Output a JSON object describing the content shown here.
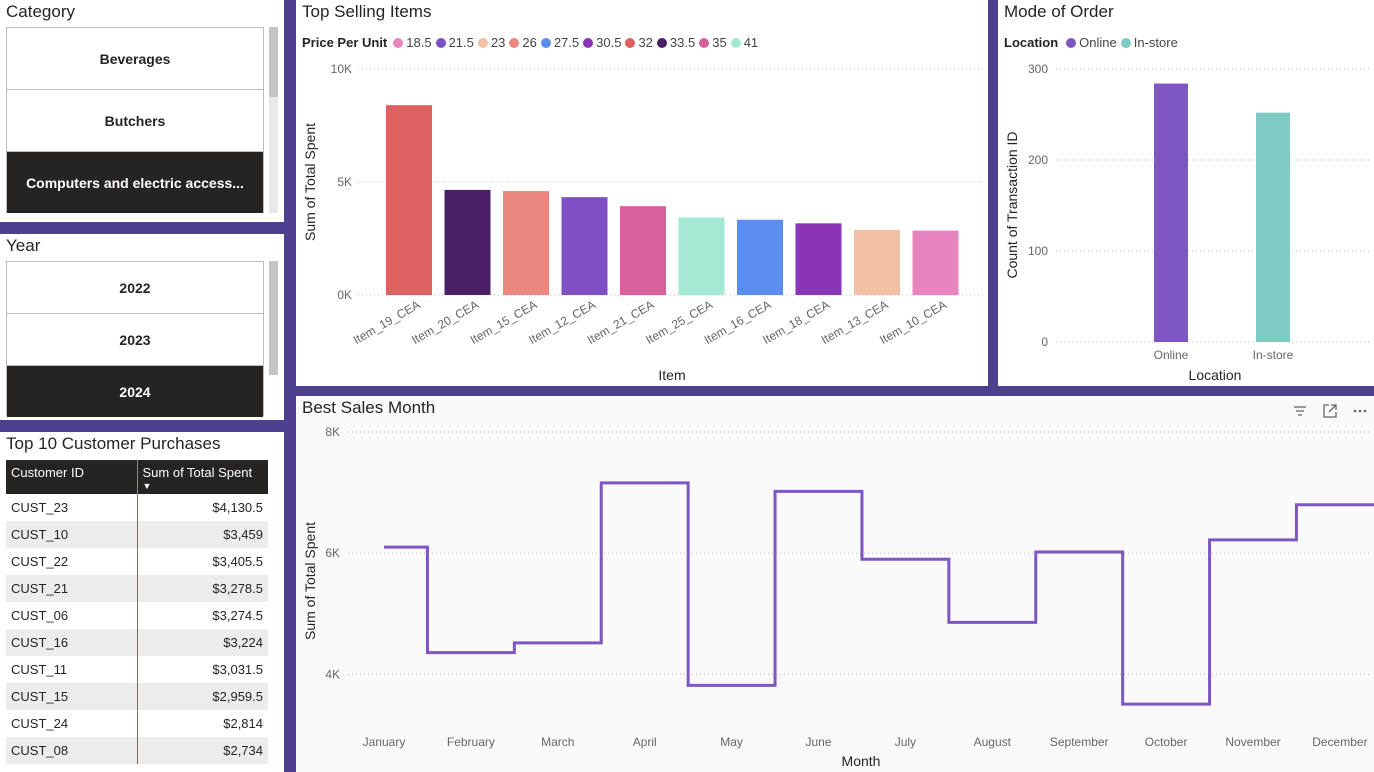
{
  "category_slicer": {
    "title": "Category",
    "items": [
      {
        "label": "Beverages",
        "selected": false
      },
      {
        "label": "Butchers",
        "selected": false
      },
      {
        "label": "Computers and electric access...",
        "selected": true
      }
    ]
  },
  "year_slicer": {
    "title": "Year",
    "items": [
      {
        "label": "2022",
        "selected": false
      },
      {
        "label": "2023",
        "selected": false
      },
      {
        "label": "2024",
        "selected": true
      }
    ]
  },
  "customer_table": {
    "title": "Top 10 Customer Purchases",
    "headers": [
      "Customer ID",
      "Sum of Total Spent"
    ],
    "sort_indicator": "▼",
    "rows": [
      [
        "CUST_23",
        "$4,130.5"
      ],
      [
        "CUST_10",
        "$3,459"
      ],
      [
        "CUST_22",
        "$3,405.5"
      ],
      [
        "CUST_21",
        "$3,278.5"
      ],
      [
        "CUST_06",
        "$3,274.5"
      ],
      [
        "CUST_16",
        "$3,224"
      ],
      [
        "CUST_11",
        "$3,031.5"
      ],
      [
        "CUST_15",
        "$2,959.5"
      ],
      [
        "CUST_24",
        "$2,814"
      ],
      [
        "CUST_08",
        "$2,734"
      ]
    ]
  },
  "top_selling": {
    "title": "Top Selling Items",
    "legend_title": "Price Per Unit",
    "legend": [
      {
        "label": "18.5",
        "color": "#e884be"
      },
      {
        "label": "21.5",
        "color": "#7f4fc4"
      },
      {
        "label": "23",
        "color": "#f4c0a4"
      },
      {
        "label": "26",
        "color": "#ea877f"
      },
      {
        "label": "27.5",
        "color": "#5b8ef0"
      },
      {
        "label": "30.5",
        "color": "#8a35b5"
      },
      {
        "label": "32",
        "color": "#dd6160"
      },
      {
        "label": "33.5",
        "color": "#4b1f66"
      },
      {
        "label": "35",
        "color": "#d9609a"
      },
      {
        "label": "41",
        "color": "#a3e9d4"
      }
    ]
  },
  "mode_of_order": {
    "title": "Mode of Order",
    "legend_title": "Location",
    "legend": [
      {
        "label": "Online",
        "color": "#7e57c2"
      },
      {
        "label": "In-store",
        "color": "#7ecbc4"
      }
    ]
  },
  "best_sales": {
    "title": "Best Sales Month",
    "toolbar_icons": [
      "filter-icon",
      "focus-mode-icon",
      "more-options-icon"
    ]
  },
  "chart_data": [
    {
      "id": "top_selling",
      "type": "bar",
      "title": "Top Selling Items",
      "xlabel": "Item",
      "ylabel": "Sum of Total Spent",
      "ylim": [
        0,
        10000
      ],
      "yticks": [
        "0K",
        "5K",
        "10K"
      ],
      "ytick_values": [
        0,
        5000,
        10000
      ],
      "categories": [
        "Item_19_CEA",
        "Item_20_CEA",
        "Item_15_CEA",
        "Item_12_CEA",
        "Item_21_CEA",
        "Item_25_CEA",
        "Item_16_CEA",
        "Item_18_CEA",
        "Item_13_CEA",
        "Item_10_CEA"
      ],
      "values": [
        8400,
        4650,
        4600,
        4330,
        3930,
        3430,
        3330,
        3170,
        2880,
        2850
      ],
      "colors": [
        "#dd6160",
        "#4b1f66",
        "#ea877f",
        "#7f4fc4",
        "#d9609a",
        "#a3e9d4",
        "#5b8ef0",
        "#8a35b5",
        "#f4c0a4",
        "#e884be"
      ],
      "legend_title": "Price Per Unit",
      "grid": true
    },
    {
      "id": "mode_of_order",
      "type": "bar",
      "title": "Mode of Order",
      "xlabel": "Location",
      "ylabel": "Count of Transaction ID",
      "ylim": [
        0,
        300
      ],
      "yticks": [
        "0",
        "100",
        "200",
        "300"
      ],
      "ytick_values": [
        0,
        100,
        200,
        300
      ],
      "categories": [
        "Online",
        "In-store"
      ],
      "values": [
        284,
        252
      ],
      "colors": [
        "#7e57c2",
        "#7ecbc4"
      ],
      "legend_title": "Location",
      "grid": true
    },
    {
      "id": "best_sales",
      "type": "line",
      "step": true,
      "title": "Best Sales Month",
      "xlabel": "Month",
      "ylabel": "Sum of Total Spent",
      "ylim": [
        3100,
        8000
      ],
      "yticks": [
        "4K",
        "6K",
        "8K"
      ],
      "ytick_values": [
        4000,
        6000,
        8000
      ],
      "categories": [
        "January",
        "February",
        "March",
        "April",
        "May",
        "June",
        "July",
        "August",
        "September",
        "October",
        "November",
        "December"
      ],
      "values": [
        6100,
        4360,
        4520,
        7160,
        3820,
        7020,
        5900,
        4860,
        6020,
        3510,
        6220,
        6800
      ],
      "color": "#7e57c2",
      "grid": true
    }
  ]
}
